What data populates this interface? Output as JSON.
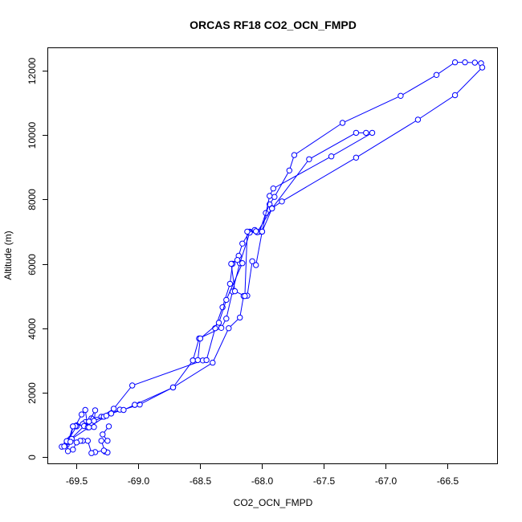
{
  "chart_data": {
    "type": "line",
    "title": "ORCAS RF18 CO2_OCN_FMPD",
    "xlabel": "CO2_OCN_FMPD",
    "ylabel": "Altitude (m)",
    "xlim": [
      -69.73,
      -66.1
    ],
    "ylim": [
      -200,
      12700
    ],
    "x_ticks": [
      -69.5,
      -69.0,
      -68.5,
      -68.0,
      -67.5,
      -67.0,
      -66.5
    ],
    "x_tick_labels": [
      "-69.5",
      "-69.0",
      "-68.5",
      "-68.0",
      "-67.5",
      "-67.0",
      "-66.5"
    ],
    "y_ticks": [
      0,
      2000,
      4000,
      6000,
      8000,
      10000,
      12000
    ],
    "y_tick_labels": [
      "0",
      "2000",
      "4000",
      "6000",
      "8000",
      "10000",
      "12000"
    ],
    "grid": false,
    "line_color": "#0000ff",
    "marker": "open-circle",
    "series": [
      {
        "points": [
          [
            -69.62,
            320
          ],
          [
            -69.58,
            380
          ],
          [
            -69.55,
            560
          ],
          [
            -69.53,
            950
          ],
          [
            -69.5,
            980
          ],
          [
            -69.43,
            1080
          ],
          [
            -69.38,
            1200
          ],
          [
            -69.3,
            1250
          ],
          [
            -69.2,
            1500
          ],
          [
            -69.05,
            2220
          ],
          [
            -68.48,
            3000
          ],
          [
            -68.45,
            3010
          ],
          [
            -68.38,
            4000
          ],
          [
            -68.32,
            4650
          ],
          [
            -68.26,
            5380
          ],
          [
            -68.24,
            6000
          ],
          [
            -68.19,
            6250
          ],
          [
            -68.16,
            6630
          ],
          [
            -68.1,
            7000
          ],
          [
            -68.06,
            7050
          ],
          [
            -68.02,
            7000
          ],
          [
            -67.97,
            7580
          ],
          [
            -67.94,
            7850
          ],
          [
            -67.9,
            8080
          ],
          [
            -67.78,
            8900
          ],
          [
            -67.74,
            9380
          ],
          [
            -67.35,
            10380
          ],
          [
            -66.88,
            11220
          ],
          [
            -66.59,
            11870
          ],
          [
            -66.44,
            12260
          ],
          [
            -66.36,
            12260
          ],
          [
            -66.28,
            12250
          ],
          [
            -66.23,
            12230
          ],
          [
            -66.22,
            12100
          ],
          [
            -66.44,
            11240
          ],
          [
            -66.74,
            10480
          ],
          [
            -67.24,
            9300
          ],
          [
            -67.84,
            7940
          ],
          [
            -67.92,
            7730
          ],
          [
            -68.04,
            6980
          ],
          [
            -68.1,
            6970
          ],
          [
            -68.18,
            6020
          ],
          [
            -68.24,
            5140
          ],
          [
            -68.29,
            4300
          ],
          [
            -68.33,
            4010
          ],
          [
            -68.51,
            3680
          ],
          [
            -68.56,
            3000
          ]
        ]
      },
      {
        "points": [
          [
            -68.56,
            3000
          ],
          [
            -68.72,
            2160
          ],
          [
            -68.99,
            1630
          ],
          [
            -69.22,
            1350
          ],
          [
            -69.28,
            1250
          ],
          [
            -69.36,
            1120
          ],
          [
            -69.45,
            1020
          ],
          [
            -69.5,
            950
          ],
          [
            -69.58,
            450
          ],
          [
            -69.56,
            500
          ],
          [
            -69.44,
            960
          ],
          [
            -69.4,
            1100
          ],
          [
            -69.35,
            1450
          ],
          [
            -69.36,
            930
          ],
          [
            -69.41,
            920
          ],
          [
            -69.43,
            1460
          ],
          [
            -69.46,
            1320
          ],
          [
            -69.51,
            960
          ],
          [
            -69.53,
            950
          ],
          [
            -69.57,
            460
          ],
          [
            -69.6,
            330
          ],
          [
            -69.57,
            500
          ],
          [
            -69.54,
            560
          ],
          [
            -69.4,
            920
          ],
          [
            -69.26,
            1280
          ],
          [
            -69.15,
            1470
          ],
          [
            -69.12,
            1460
          ],
          [
            -69.03,
            1620
          ]
        ]
      },
      {
        "points": [
          [
            -69.03,
            1620
          ],
          [
            -68.72,
            2160
          ],
          [
            -68.4,
            2930
          ],
          [
            -68.27,
            4000
          ],
          [
            -68.18,
            4330
          ],
          [
            -68.15,
            5000
          ],
          [
            -68.12,
            5010
          ],
          [
            -68.08,
            6080
          ],
          [
            -68.05,
            5960
          ],
          [
            -68.0,
            7000
          ],
          [
            -67.92,
            7720
          ],
          [
            -67.62,
            9250
          ],
          [
            -67.24,
            10070
          ],
          [
            -67.16,
            10070
          ],
          [
            -67.11,
            10070
          ],
          [
            -67.44,
            9340
          ],
          [
            -67.91,
            8340
          ],
          [
            -67.94,
            8110
          ],
          [
            -68.0,
            7000
          ],
          [
            -68.05,
            7010
          ],
          [
            -68.12,
            7000
          ],
          [
            -68.14,
            5000
          ],
          [
            -68.22,
            5150
          ],
          [
            -68.25,
            6000
          ],
          [
            -68.2,
            6120
          ],
          [
            -68.16,
            6020
          ],
          [
            -68.29,
            4880
          ],
          [
            -68.35,
            4170
          ],
          [
            -68.5,
            3680
          ],
          [
            -68.52,
            3010
          ]
        ]
      },
      {
        "points": [
          [
            -69.24,
            950
          ],
          [
            -69.29,
            700
          ],
          [
            -69.25,
            500
          ],
          [
            -69.3,
            500
          ],
          [
            -69.27,
            170
          ],
          [
            -69.25,
            140
          ],
          [
            -69.28,
            200
          ],
          [
            -69.35,
            150
          ],
          [
            -69.38,
            120
          ],
          [
            -69.41,
            500
          ],
          [
            -69.45,
            500
          ],
          [
            -69.47,
            500
          ],
          [
            -69.5,
            450
          ],
          [
            -69.53,
            230
          ],
          [
            -69.57,
            180
          ],
          [
            -69.58,
            490
          ],
          [
            -69.55,
            470
          ]
        ]
      }
    ]
  }
}
